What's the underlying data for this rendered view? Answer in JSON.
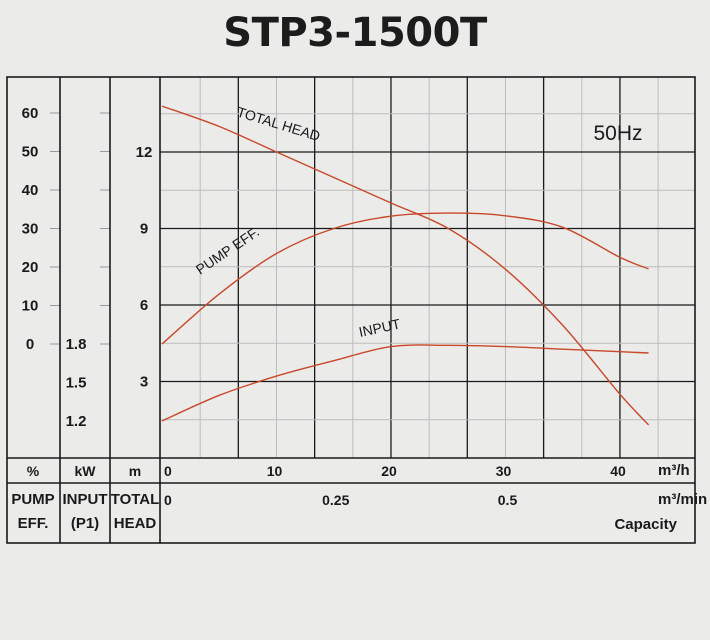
{
  "chart_data": {
    "type": "line",
    "title": "STP3-1500T",
    "frequency_label": "50Hz",
    "x": {
      "unit_primary": "m³/h",
      "unit_secondary": "m³/min",
      "range": [
        0,
        42
      ],
      "ticks": [
        "0",
        "10",
        "20",
        "30",
        "40"
      ],
      "secondary_ticks": [
        "0",
        "0.25",
        "0.5"
      ],
      "label": "Capacity",
      "grid_step": 3.333
    },
    "axes": {
      "pump_eff": {
        "unit": "%",
        "ticks": [
          "0",
          "10",
          "20",
          "30",
          "40",
          "50",
          "60"
        ],
        "header_lines": [
          "PUMP",
          "EFF."
        ]
      },
      "input": {
        "unit": "kW",
        "ticks": [
          "1.2",
          "1.5",
          "1.8"
        ],
        "header_lines": [
          "INPUT",
          "(P1)"
        ]
      },
      "total_head": {
        "unit": "m",
        "ticks": [
          "3",
          "6",
          "9",
          "12"
        ],
        "range": [
          0,
          14.5
        ],
        "header_lines": [
          "TOTAL",
          "HEAD"
        ]
      }
    },
    "series": [
      {
        "name": "TOTAL HEAD",
        "axis": "total_head",
        "x": [
          0,
          5,
          10,
          15,
          20,
          25,
          30,
          35,
          40,
          42.5
        ],
        "y": [
          13.8,
          13.0,
          12.0,
          11.0,
          10.0,
          9.0,
          7.4,
          5.2,
          2.5,
          1.3
        ]
      },
      {
        "name": "PUMP EFF.",
        "axis": "pump_eff",
        "x": [
          0,
          5,
          10,
          15,
          20,
          25,
          30,
          35,
          40,
          42.5
        ],
        "y": [
          0,
          13,
          23.5,
          30,
          33.2,
          34,
          33.3,
          30.3,
          22.5,
          19.5
        ]
      },
      {
        "name": "INPUT",
        "axis": "input",
        "x": [
          0,
          5,
          10,
          15,
          20,
          25,
          30,
          35,
          40,
          42.5
        ],
        "y": [
          1.2,
          1.4,
          1.55,
          1.67,
          1.78,
          1.79,
          1.78,
          1.76,
          1.74,
          1.73
        ]
      }
    ]
  }
}
